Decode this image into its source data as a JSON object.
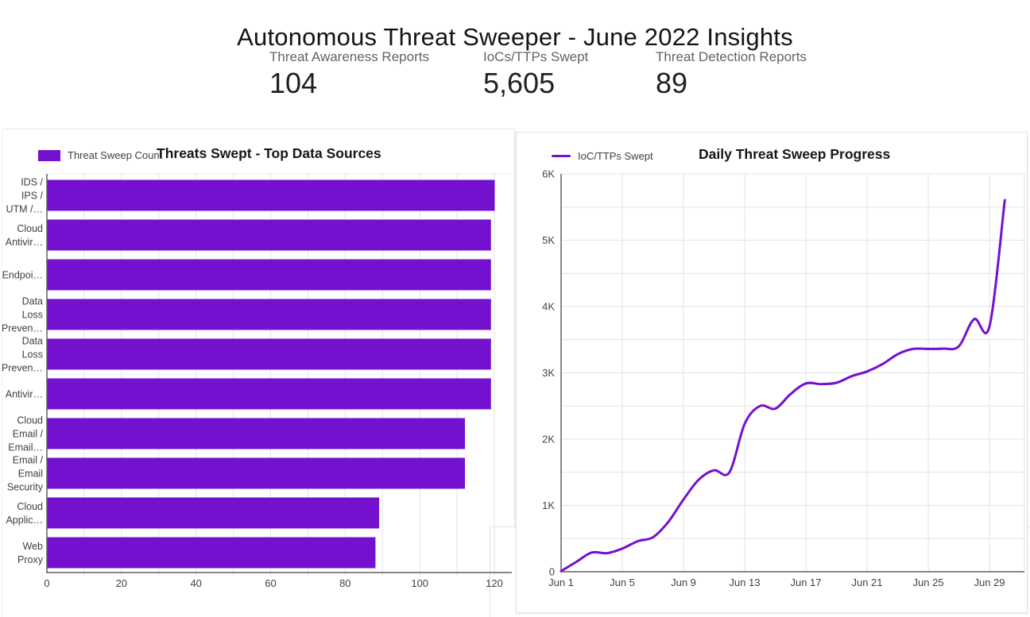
{
  "page": {
    "title": "Autonomous Threat Sweeper - June 2022 Insights"
  },
  "kpis": [
    {
      "label": "Threat Awareness Reports",
      "value": "104"
    },
    {
      "label": "IoCs/TTPs Swept",
      "value": "5,605"
    },
    {
      "label": "Threat Detection Reports",
      "value": "89"
    }
  ],
  "colors": {
    "accent": "#7311CE",
    "axis_line": "#616161",
    "grid_line": "#e3e3e3",
    "tick_text": "#424242",
    "category_text": "#3c4043",
    "kpi_label_gray": "#5f6368",
    "kpi_value_dark": "#202124"
  },
  "chart_data": [
    {
      "type": "bar",
      "orientation": "horizontal",
      "title": "Threats Swept - Top Data Sources",
      "legend_position": "top-left",
      "series": [
        {
          "name": "Threat Sweep Count",
          "values": [
            120,
            119,
            119,
            119,
            119,
            119,
            112,
            112,
            89,
            88
          ]
        }
      ],
      "categories": [
        "IDS / IPS / UTM /…",
        "Cloud Antivir…",
        "Endpoi…",
        "Data Loss Preven…",
        "Data Loss Preven…",
        "Antivir…",
        "Cloud Email / Email…",
        "Email / Email Security",
        "Cloud Applic…",
        "Web Proxy"
      ],
      "category_label_lines": [
        [
          "IDS /",
          "IPS /",
          "UTM /…"
        ],
        [
          "Cloud",
          "Antivir…"
        ],
        [
          "Endpoi…"
        ],
        [
          "Data",
          "Loss",
          "Preven…"
        ],
        [
          "Data",
          "Loss",
          "Preven…"
        ],
        [
          "Antivir…"
        ],
        [
          "Cloud",
          "Email /",
          "Email…"
        ],
        [
          "Email /",
          "Email",
          "Security"
        ],
        [
          "Cloud",
          "Applic…"
        ],
        [
          "Web",
          "Proxy"
        ]
      ],
      "xlim": [
        0,
        120
      ],
      "xticks": [
        0,
        20,
        40,
        60,
        80,
        100,
        120
      ],
      "minor_grid_step": 10,
      "grid": "vertical"
    },
    {
      "type": "line",
      "title": "Daily Threat Sweep Progress",
      "legend_position": "top-left",
      "smooth": true,
      "series": [
        {
          "name": "IoC/TTPs Swept",
          "x_days": [
            1,
            2,
            3,
            4,
            5,
            6,
            7,
            8,
            9,
            10,
            11,
            12,
            13,
            14,
            15,
            16,
            17,
            18,
            19,
            20,
            21,
            22,
            23,
            24,
            25,
            26,
            27,
            28,
            29,
            30
          ],
          "values": [
            10,
            150,
            290,
            280,
            350,
            460,
            520,
            750,
            1090,
            1390,
            1530,
            1500,
            2230,
            2500,
            2460,
            2680,
            2840,
            2830,
            2850,
            2950,
            3020,
            3130,
            3280,
            3360,
            3360,
            3365,
            3400,
            3810,
            3700,
            5605
          ]
        }
      ],
      "x_tick_days": [
        1,
        5,
        9,
        13,
        17,
        21,
        25,
        29
      ],
      "x_tick_labels": [
        "Jun 1",
        "Jun 5",
        "Jun 9",
        "Jun 13",
        "Jun 17",
        "Jun 21",
        "Jun 25",
        "Jun 29"
      ],
      "ylim": [
        0,
        6000
      ],
      "ytick_values": [
        0,
        1000,
        2000,
        3000,
        4000,
        5000,
        6000
      ],
      "ytick_labels": [
        "0",
        "1K",
        "2K",
        "3K",
        "4K",
        "5K",
        "6K"
      ],
      "minor_grid_step": 500,
      "grid": "both"
    }
  ]
}
